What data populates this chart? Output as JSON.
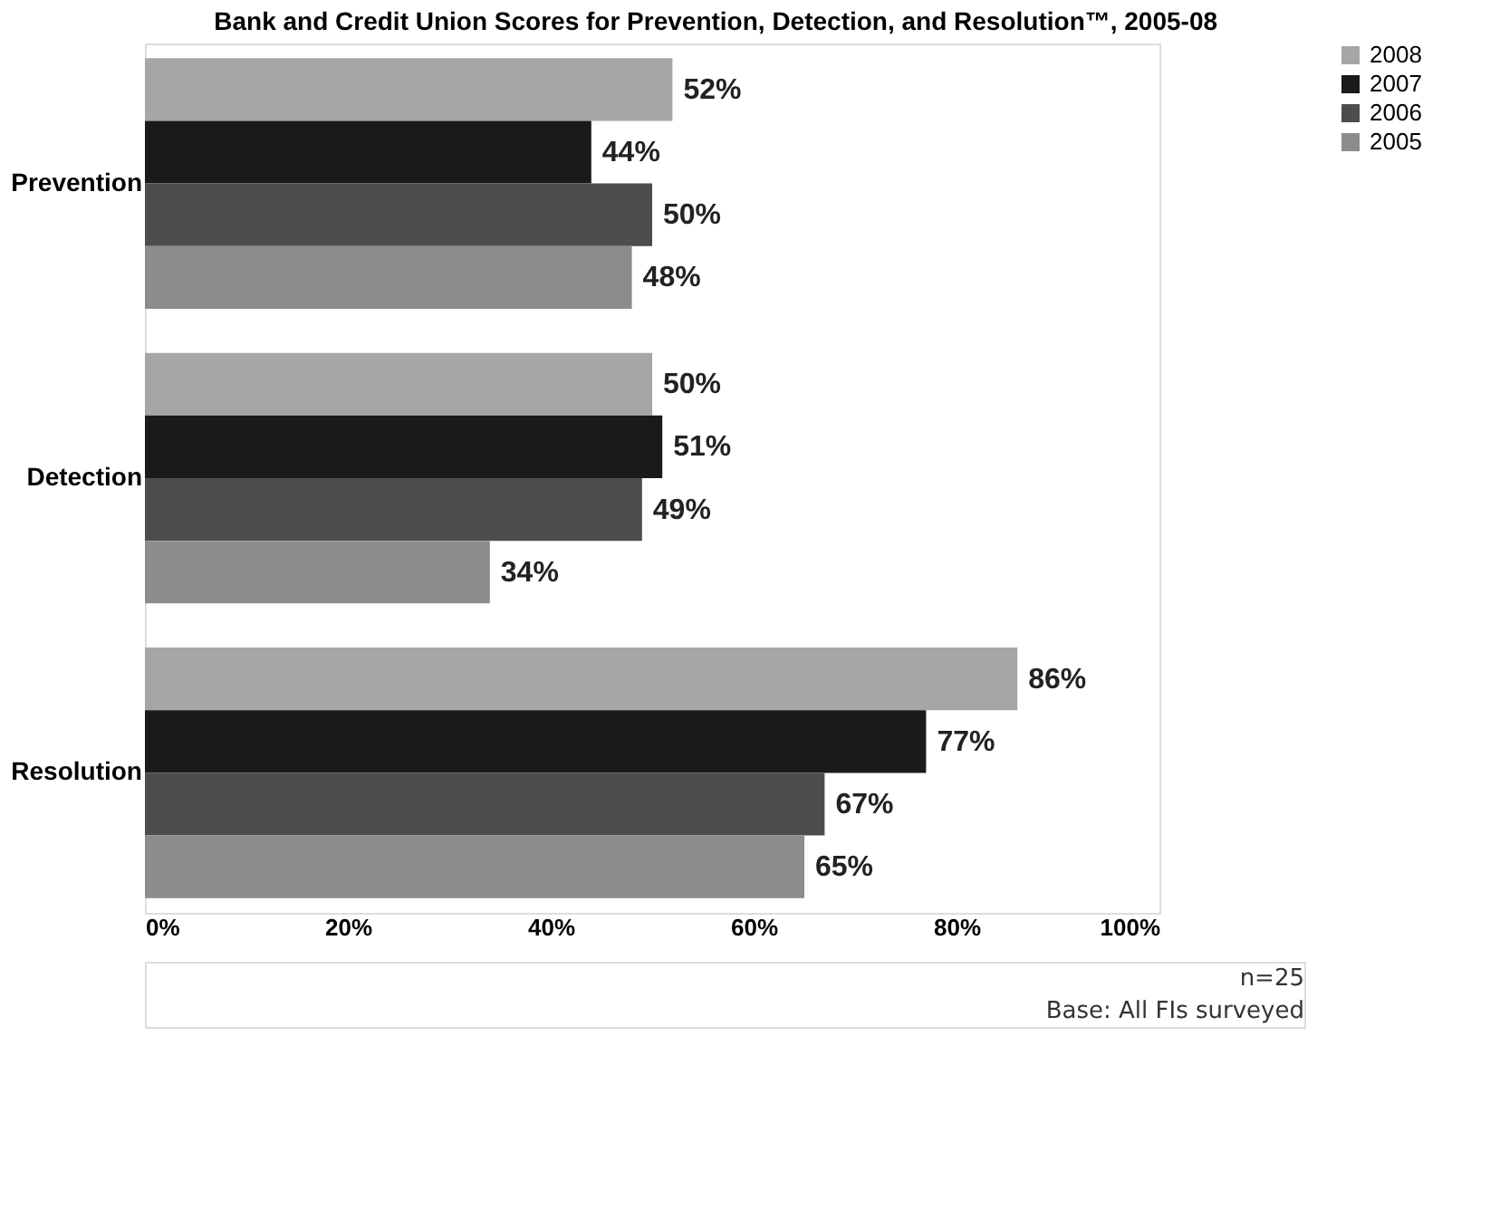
{
  "chart_data": {
    "type": "bar",
    "orientation": "horizontal",
    "title": "Bank and Credit Union Scores for Prevention, Detection, and Resolution™, 2005-08",
    "categories": [
      "Prevention",
      "Detection",
      "Resolution"
    ],
    "series": [
      {
        "name": "2008",
        "color": "#a6a6a6",
        "values": [
          52,
          50,
          86
        ],
        "value_labels": [
          "52%",
          "50%",
          "86%"
        ]
      },
      {
        "name": "2007",
        "color": "#1a1a1a",
        "values": [
          44,
          51,
          77
        ],
        "value_labels": [
          "44%",
          "51%",
          "77%"
        ]
      },
      {
        "name": "2006",
        "color": "#4d4d4d",
        "values": [
          50,
          49,
          67
        ],
        "value_labels": [
          "50%",
          "49%",
          "67%"
        ]
      },
      {
        "name": "2005",
        "color": "#8c8c8c",
        "values": [
          48,
          34,
          65
        ],
        "value_labels": [
          "48%",
          "34%",
          "65%"
        ]
      }
    ],
    "xlim": [
      0,
      100
    ],
    "xticks": [
      {
        "value": 0,
        "label": "0%"
      },
      {
        "value": 20,
        "label": "20%"
      },
      {
        "value": 40,
        "label": "40%"
      },
      {
        "value": 60,
        "label": "60%"
      },
      {
        "value": 80,
        "label": "80%"
      },
      {
        "value": 100,
        "label": "100%"
      }
    ],
    "grid": false,
    "legend": "right",
    "annotations": [
      "n=25",
      "Base: All FIs surveyed"
    ]
  }
}
